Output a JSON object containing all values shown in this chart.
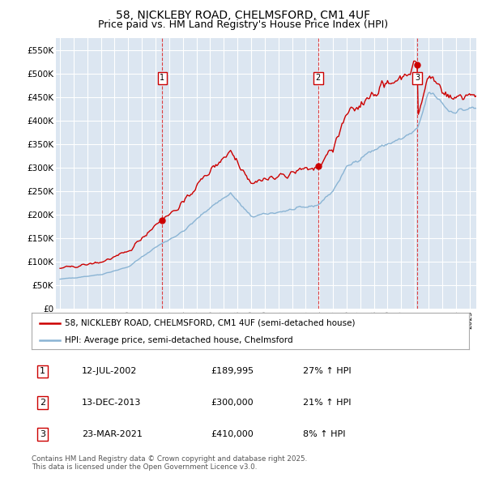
{
  "title": "58, NICKLEBY ROAD, CHELMSFORD, CM1 4UF",
  "subtitle": "Price paid vs. HM Land Registry's House Price Index (HPI)",
  "ylim": [
    0,
    575000
  ],
  "yticks": [
    0,
    50000,
    100000,
    150000,
    200000,
    250000,
    300000,
    350000,
    400000,
    450000,
    500000,
    550000
  ],
  "ytick_labels": [
    "£0",
    "£50K",
    "£100K",
    "£150K",
    "£200K",
    "£250K",
    "£300K",
    "£350K",
    "£400K",
    "£450K",
    "£500K",
    "£550K"
  ],
  "background_color": "#dce6f1",
  "grid_color": "#ffffff",
  "sale_color": "#cc0000",
  "hpi_color": "#8ab4d4",
  "sale_annotations": [
    {
      "label": "1",
      "date": "12-JUL-2002",
      "price": "£189,995",
      "change": "27% ↑ HPI"
    },
    {
      "label": "2",
      "date": "13-DEC-2013",
      "price": "£300,000",
      "change": "21% ↑ HPI"
    },
    {
      "label": "3",
      "date": "23-MAR-2021",
      "price": "£410,000",
      "change": "8% ↑ HPI"
    }
  ],
  "legend_entries": [
    "58, NICKLEBY ROAD, CHELMSFORD, CM1 4UF (semi-detached house)",
    "HPI: Average price, semi-detached house, Chelmsford"
  ],
  "footer": "Contains HM Land Registry data © Crown copyright and database right 2025.\nThis data is licensed under the Open Government Licence v3.0.",
  "title_fontsize": 10,
  "subtitle_fontsize": 9,
  "tick_fontsize": 7.5
}
